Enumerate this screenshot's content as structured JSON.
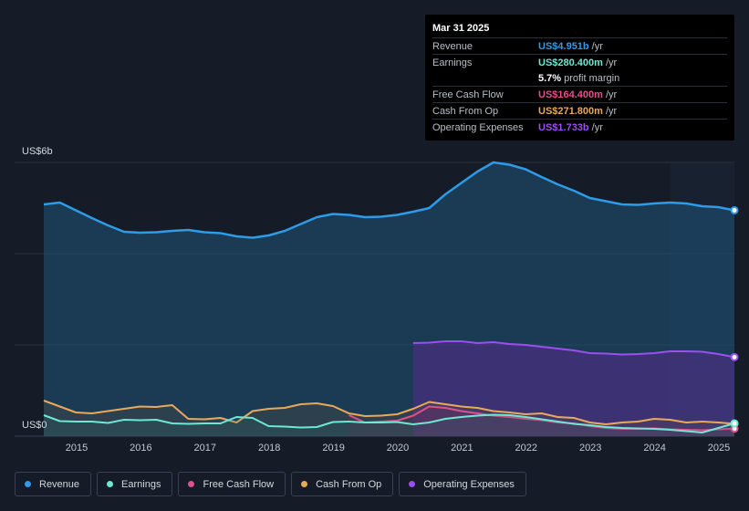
{
  "tooltip": {
    "date": "Mar 31 2025",
    "rows": [
      {
        "label": "Revenue",
        "value": "US$4.951b",
        "unit": "/yr"
      },
      {
        "label": "Earnings",
        "value": "US$280.400m",
        "unit": "/yr"
      },
      {
        "label": "",
        "value": "5.7%",
        "unit": "profit margin"
      },
      {
        "label": "Free Cash Flow",
        "value": "US$164.400m",
        "unit": "/yr"
      },
      {
        "label": "Cash From Op",
        "value": "US$271.800m",
        "unit": "/yr"
      },
      {
        "label": "Operating Expenses",
        "value": "US$1.733b",
        "unit": "/yr"
      }
    ]
  },
  "colors": {
    "revenue": "#2e9be8",
    "earnings": "#6ee7d3",
    "fcf": "#e0508c",
    "cfo": "#e9a95a",
    "opex": "#9b4ff0"
  },
  "chart_data": {
    "type": "area",
    "y_top_label": "US$6b",
    "y_bottom_label": "US$0",
    "ylim": [
      0,
      6
    ],
    "xlim": [
      2014.5,
      2025.25
    ],
    "x_ticks": [
      "2015",
      "2016",
      "2017",
      "2018",
      "2019",
      "2020",
      "2021",
      "2022",
      "2023",
      "2024",
      "2025"
    ],
    "series": [
      {
        "name": "Revenue",
        "key": "revenue",
        "x": [
          2014.5,
          2014.75,
          2015.0,
          2015.25,
          2015.5,
          2015.75,
          2016.0,
          2016.25,
          2016.5,
          2016.75,
          2017.0,
          2017.25,
          2017.5,
          2017.75,
          2018.0,
          2018.25,
          2018.5,
          2018.75,
          2019.0,
          2019.25,
          2019.5,
          2019.75,
          2020.0,
          2020.25,
          2020.5,
          2020.75,
          2021.0,
          2021.25,
          2021.5,
          2021.75,
          2022.0,
          2022.25,
          2022.5,
          2022.75,
          2023.0,
          2023.25,
          2023.5,
          2023.75,
          2024.0,
          2024.25,
          2024.5,
          2024.75,
          2025.0,
          2025.25
        ],
        "y": [
          5.08,
          5.12,
          4.95,
          4.78,
          4.62,
          4.48,
          4.46,
          4.47,
          4.5,
          4.52,
          4.47,
          4.45,
          4.38,
          4.35,
          4.4,
          4.5,
          4.65,
          4.8,
          4.87,
          4.85,
          4.8,
          4.81,
          4.85,
          4.92,
          5.0,
          5.3,
          5.55,
          5.8,
          6.0,
          5.95,
          5.85,
          5.68,
          5.52,
          5.38,
          5.22,
          5.15,
          5.08,
          5.07,
          5.1,
          5.12,
          5.1,
          5.04,
          5.02,
          4.951
        ]
      },
      {
        "name": "Earnings",
        "key": "earnings",
        "x": [
          2014.5,
          2014.75,
          2015.0,
          2015.25,
          2015.5,
          2015.75,
          2016.0,
          2016.25,
          2016.5,
          2016.75,
          2017.0,
          2017.25,
          2017.5,
          2017.75,
          2018.0,
          2018.25,
          2018.5,
          2018.75,
          2019.0,
          2019.25,
          2019.5,
          2019.75,
          2020.0,
          2020.25,
          2020.5,
          2020.75,
          2021.0,
          2021.25,
          2021.5,
          2021.75,
          2022.0,
          2022.25,
          2022.5,
          2022.75,
          2023.0,
          2023.25,
          2023.5,
          2023.75,
          2024.0,
          2024.25,
          2024.5,
          2024.75,
          2025.0,
          2025.25
        ],
        "y": [
          0.46,
          0.33,
          0.32,
          0.32,
          0.29,
          0.36,
          0.35,
          0.36,
          0.28,
          0.27,
          0.28,
          0.28,
          0.42,
          0.4,
          0.22,
          0.21,
          0.19,
          0.2,
          0.31,
          0.32,
          0.3,
          0.3,
          0.31,
          0.26,
          0.3,
          0.38,
          0.42,
          0.45,
          0.47,
          0.46,
          0.42,
          0.37,
          0.32,
          0.27,
          0.24,
          0.2,
          0.18,
          0.17,
          0.16,
          0.14,
          0.11,
          0.08,
          0.18,
          0.2804
        ]
      },
      {
        "name": "Free Cash Flow",
        "key": "fcf",
        "x": [
          2019.25,
          2019.5,
          2019.75,
          2020.0,
          2020.25,
          2020.5,
          2020.75,
          2021.0,
          2021.25,
          2021.5,
          2021.75,
          2022.0,
          2022.25,
          2022.5,
          2022.75,
          2023.0,
          2023.25,
          2023.5,
          2023.75,
          2024.0,
          2024.25,
          2024.5,
          2024.75,
          2025.0,
          2025.25
        ],
        "y": [
          0.46,
          0.3,
          0.32,
          0.34,
          0.45,
          0.65,
          0.62,
          0.55,
          0.5,
          0.45,
          0.42,
          0.38,
          0.35,
          0.3,
          0.28,
          0.22,
          0.18,
          0.16,
          0.16,
          0.17,
          0.15,
          0.14,
          0.13,
          0.15,
          0.1644
        ]
      },
      {
        "name": "Cash From Op",
        "key": "cfo",
        "x": [
          2014.5,
          2014.75,
          2015.0,
          2015.25,
          2015.5,
          2015.75,
          2016.0,
          2016.25,
          2016.5,
          2016.75,
          2017.0,
          2017.25,
          2017.5,
          2017.75,
          2018.0,
          2018.25,
          2018.5,
          2018.75,
          2019.0,
          2019.25,
          2019.5,
          2019.75,
          2020.0,
          2020.25,
          2020.5,
          2020.75,
          2021.0,
          2021.25,
          2021.5,
          2021.75,
          2022.0,
          2022.25,
          2022.5,
          2022.75,
          2023.0,
          2023.25,
          2023.5,
          2023.75,
          2024.0,
          2024.25,
          2024.5,
          2024.75,
          2025.0,
          2025.25
        ],
        "y": [
          0.78,
          0.65,
          0.52,
          0.5,
          0.55,
          0.6,
          0.65,
          0.64,
          0.68,
          0.38,
          0.37,
          0.4,
          0.3,
          0.55,
          0.6,
          0.62,
          0.7,
          0.72,
          0.66,
          0.5,
          0.44,
          0.45,
          0.48,
          0.6,
          0.75,
          0.7,
          0.65,
          0.62,
          0.55,
          0.52,
          0.48,
          0.5,
          0.42,
          0.4,
          0.3,
          0.26,
          0.3,
          0.32,
          0.38,
          0.36,
          0.3,
          0.32,
          0.3,
          0.2718
        ]
      },
      {
        "name": "Operating Expenses",
        "key": "opex",
        "x": [
          2020.25,
          2020.5,
          2020.75,
          2021.0,
          2021.25,
          2021.5,
          2021.75,
          2022.0,
          2022.25,
          2022.5,
          2022.75,
          2023.0,
          2023.25,
          2023.5,
          2023.75,
          2024.0,
          2024.25,
          2024.5,
          2024.75,
          2025.0,
          2025.25
        ],
        "y": [
          2.04,
          2.05,
          2.08,
          2.08,
          2.04,
          2.06,
          2.02,
          2.0,
          1.96,
          1.92,
          1.88,
          1.82,
          1.81,
          1.79,
          1.8,
          1.82,
          1.86,
          1.86,
          1.85,
          1.8,
          1.733
        ]
      }
    ],
    "legend": [
      "Revenue",
      "Earnings",
      "Free Cash Flow",
      "Cash From Op",
      "Operating Expenses"
    ]
  }
}
